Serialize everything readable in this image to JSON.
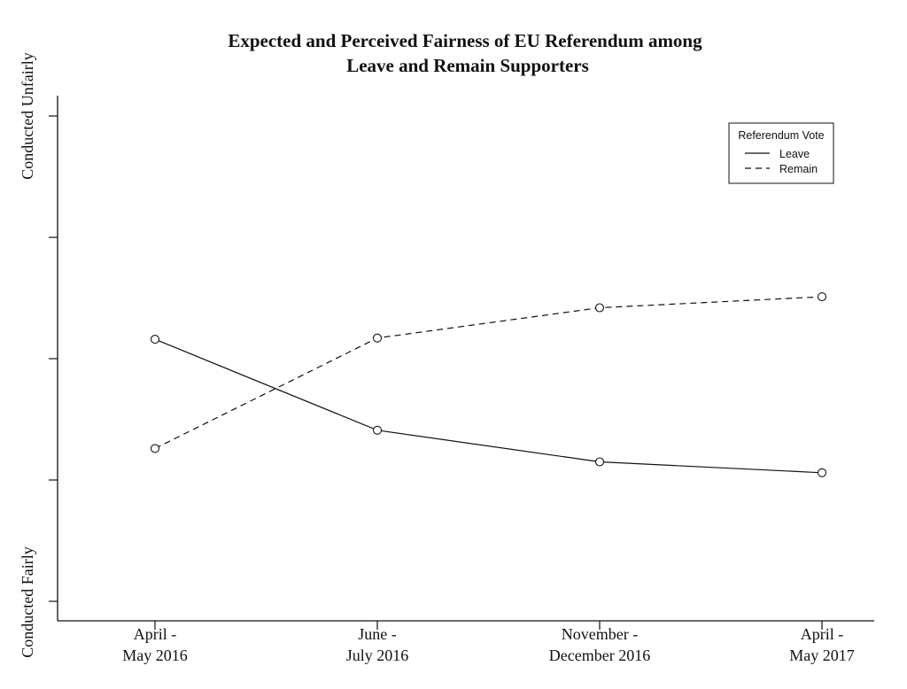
{
  "chart_data": {
    "type": "line",
    "title": [
      "Expected and Perceived Fairness of EU Referendum among",
      "Leave and Remain Supporters"
    ],
    "categories": [
      [
        "April -",
        "May 2016"
      ],
      [
        "June -",
        "July 2016"
      ],
      [
        "November -",
        "December 2016"
      ],
      [
        "April -",
        "May 2017"
      ]
    ],
    "y_end_labels": {
      "top": "Conducted Unfairly",
      "bottom": "Conducted Fairly"
    },
    "ylim": [
      0,
      4
    ],
    "yticks": [
      0,
      1,
      2,
      3,
      4
    ],
    "grid": false,
    "legend": {
      "title": "Referendum Vote",
      "position": "top-right"
    },
    "series": [
      {
        "name": "Leave",
        "line_style": "solid",
        "marker": "circle",
        "color": "#111111",
        "values": [
          2.16,
          1.41,
          1.15,
          1.06
        ]
      },
      {
        "name": "Remain",
        "line_style": "dashed",
        "marker": "circle",
        "color": "#111111",
        "values": [
          1.26,
          2.17,
          2.42,
          2.51
        ]
      }
    ]
  }
}
